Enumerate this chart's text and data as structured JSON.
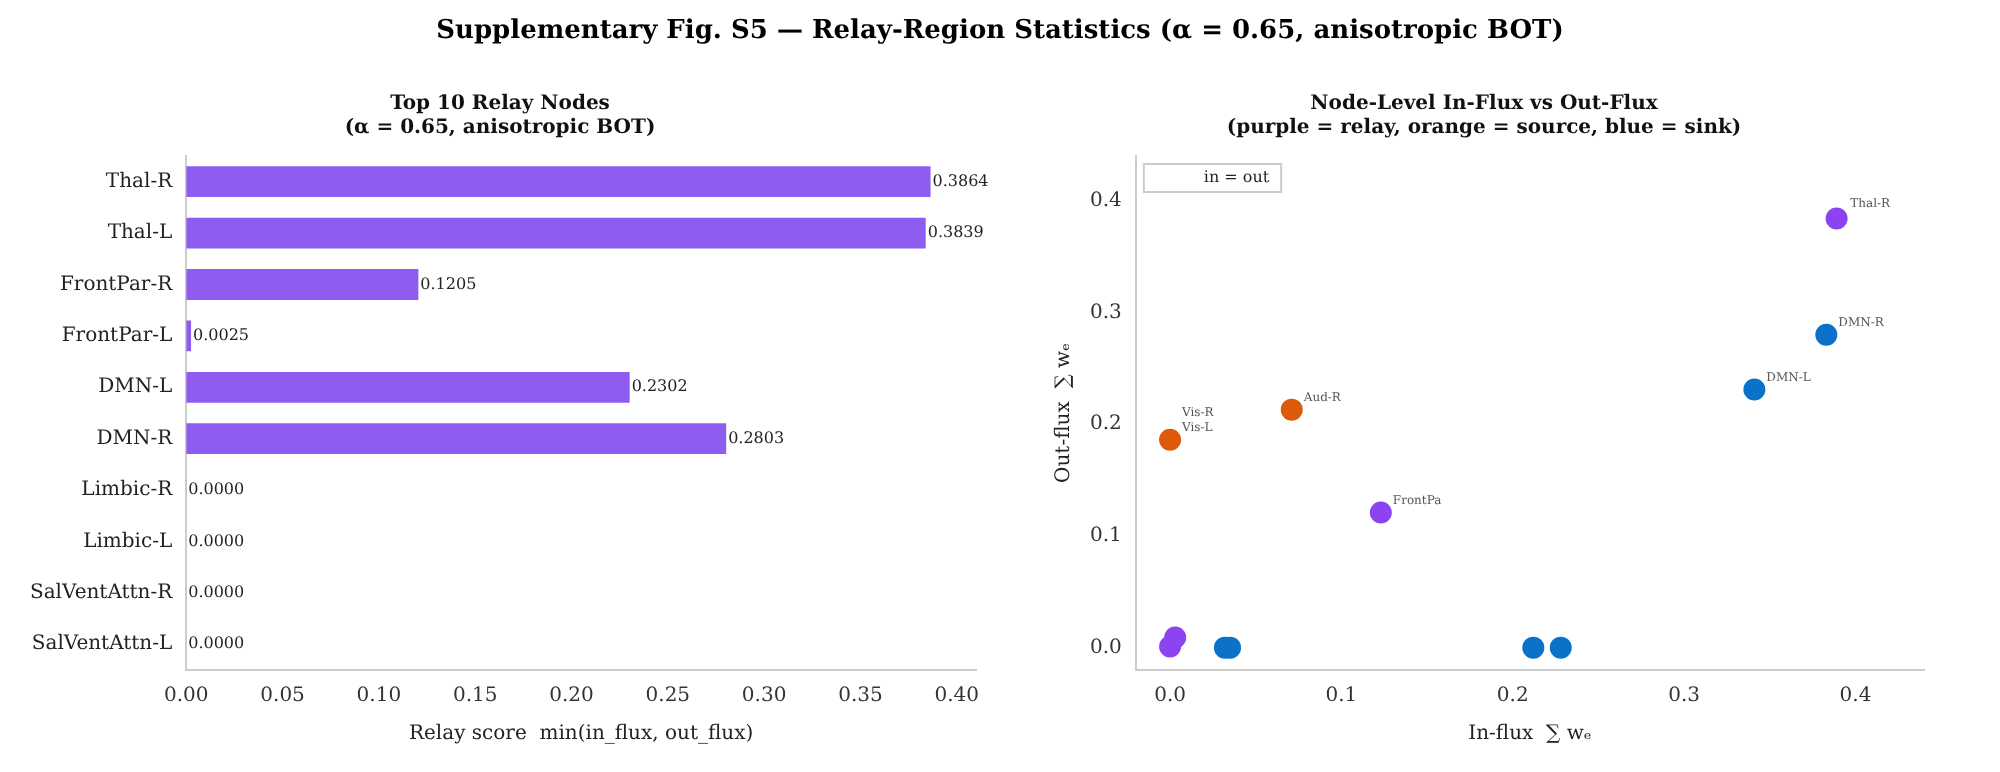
{
  "chart_data": [
    {
      "type": "bar",
      "orientation": "horizontal",
      "title": "Top 10 Relay Nodes",
      "subtitle": "(α = 0.65, anisotropic BOT)",
      "annotations": [
        "Supplementary Fig. S5 — Relay-Region Statistics (α = 0.65, anisotropic BOT)"
      ],
      "xlabel": "Relay score  min(in_flux, out_flux)",
      "categories": [
        "Thal-R",
        "Thal-L",
        "FrontPar-R",
        "FrontPar-L",
        "DMN-L",
        "DMN-R",
        "Limbic-R",
        "Limbic-L",
        "SalVentAttn-R",
        "SalVentAttn-L"
      ],
      "values": [
        0.3864,
        0.3839,
        0.1205,
        0.0025,
        0.2302,
        0.2803,
        0,
        0,
        0,
        0
      ],
      "value_labels": [
        "0.3864",
        "0.3839",
        "0.1205",
        "0.0025",
        "0.2302",
        "0.2803",
        "0.0000",
        "0.0000",
        "0.0000",
        "0.0000"
      ],
      "color": "#8e5cf0",
      "xlim": [
        0,
        0.41
      ],
      "xticks": [
        {
          "value": 0,
          "label": "0.00"
        },
        {
          "value": 0.05,
          "label": "0.05"
        },
        {
          "value": 0.1,
          "label": "0.10"
        },
        {
          "value": 0.15,
          "label": "0.15"
        },
        {
          "value": 0.2,
          "label": "0.20"
        },
        {
          "value": 0.25,
          "label": "0.25"
        },
        {
          "value": 0.3,
          "label": "0.30"
        },
        {
          "value": 0.35,
          "label": "0.35"
        },
        {
          "value": 0.4,
          "label": "0.40"
        }
      ],
      "grid": false,
      "legend": false
    },
    {
      "type": "scatter",
      "title": "Node-Level In-Flux vs Out-Flux",
      "subtitle": "(purple = relay, orange = source, blue = sink)",
      "xlabel": "In-flux  ∑ wₑ",
      "ylabel": "Out-flux  ∑ wₑ",
      "marker": "circle",
      "series": [
        {
          "color": "#8b44f0",
          "x": [
            0.389,
            0.123,
            0.003,
            0
          ],
          "values": [
            0.384,
            0.121,
            0.009,
            0.001
          ]
        },
        {
          "color": "#dd5a0a",
          "x": [
            0,
            0.071
          ],
          "values": [
            0.186,
            0.213
          ]
        },
        {
          "color": "#0a72c8",
          "x": [
            0.383,
            0.341,
            0.032,
            0.035,
            0.212,
            0.228
          ],
          "values": [
            0.28,
            0.231,
            0,
            0,
            0,
            0
          ]
        }
      ],
      "annotations": [
        "in = out",
        {
          "text": "Thal-R",
          "x": 0.39,
          "y": 0.386
        },
        {
          "text": "DMN-R",
          "x": 0.383,
          "y": 0.28
        },
        {
          "text": "DMN-L",
          "x": 0.341,
          "y": 0.231
        },
        {
          "text": "Aud-R",
          "x": 0.071,
          "y": 0.213
        },
        {
          "text": "FrontPa",
          "x": 0.123,
          "y": 0.121
        },
        {
          "text": "Vis-R",
          "x": 0,
          "y": 0.199
        },
        {
          "text": "Vis-L",
          "x": 0,
          "y": 0.186
        }
      ],
      "xlim": [
        -0.02,
        0.44
      ],
      "ylim": [
        -0.02,
        0.44
      ],
      "xticks": [
        {
          "value": 0,
          "label": "0.0"
        },
        {
          "value": 0.1,
          "label": "0.1"
        },
        {
          "value": 0.2,
          "label": "0.2"
        },
        {
          "value": 0.3,
          "label": "0.3"
        },
        {
          "value": 0.4,
          "label": "0.4"
        }
      ],
      "yticks": [
        {
          "value": 0,
          "label": "0.0"
        },
        {
          "value": 0.1,
          "label": "0.1"
        },
        {
          "value": 0.2,
          "label": "0.2"
        },
        {
          "value": 0.3,
          "label": "0.3"
        },
        {
          "value": 0.4,
          "label": "0.4"
        }
      ],
      "grid": false,
      "legend": false
    }
  ]
}
